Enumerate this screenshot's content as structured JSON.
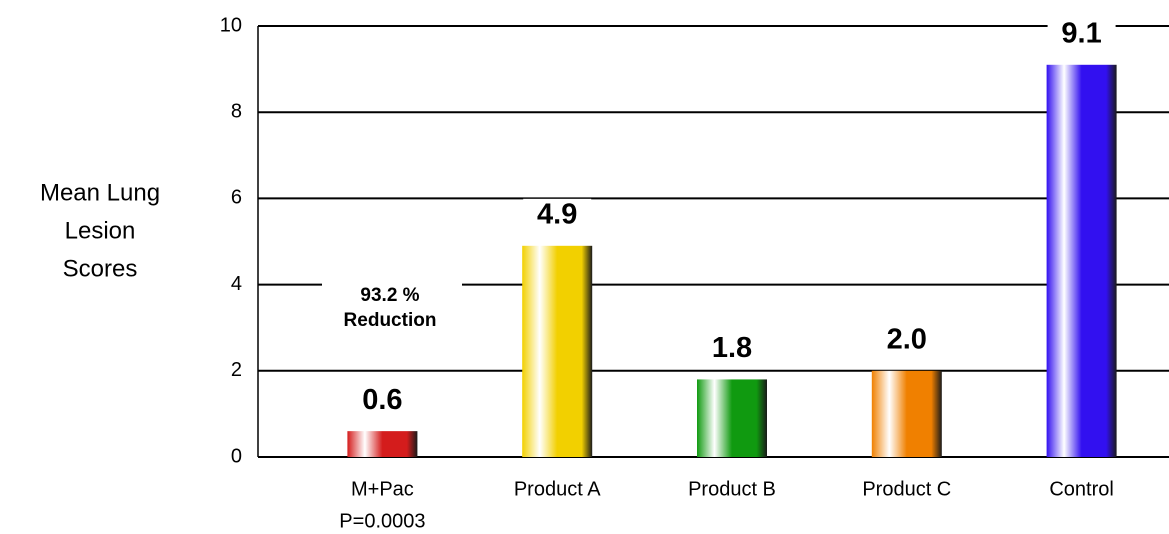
{
  "chart_data": {
    "type": "bar",
    "ylabel": [
      "Mean Lung",
      "Lesion",
      "Scores"
    ],
    "categories": [
      "M+Pac",
      "Product A",
      "Product B",
      "Product C",
      "Control"
    ],
    "category_note": "P=0.0003",
    "values": [
      0.6,
      4.9,
      1.8,
      2.0,
      9.1
    ],
    "value_labels": [
      "0.6",
      "4.9",
      "1.8",
      "2.0",
      "9.1"
    ],
    "colors": [
      "#d41c1c",
      "#f2d000",
      "#109a10",
      "#f08000",
      "#3210f0"
    ],
    "annotation": [
      "93.2 %",
      "Reduction"
    ],
    "ylim": [
      0,
      10
    ],
    "yticks": [
      0,
      2,
      4,
      6,
      8,
      10
    ],
    "grid": true
  }
}
